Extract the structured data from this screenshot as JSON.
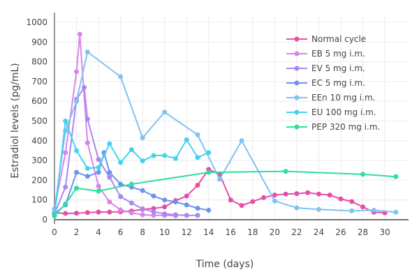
{
  "chart_data": {
    "type": "line",
    "title": "",
    "xlabel": "Time (days)",
    "ylabel": "Estradiol levels (pg/mL)",
    "xlim": [
      0,
      32
    ],
    "ylim": [
      0,
      1000
    ],
    "xticks": [
      0,
      2,
      4,
      6,
      8,
      10,
      12,
      14,
      16,
      18,
      20,
      22,
      24,
      26,
      28,
      30
    ],
    "yticks": [
      0,
      100,
      200,
      300,
      400,
      500,
      600,
      700,
      800,
      900,
      1000
    ],
    "grid": true,
    "legend": "top-right",
    "series": [
      {
        "name": "Normal cycle",
        "color": "#e54ea6",
        "x": [
          0,
          1,
          2,
          3,
          4,
          5,
          6,
          7,
          8,
          9,
          10,
          11,
          12,
          13,
          14,
          15,
          16,
          17,
          18,
          19,
          20,
          21,
          22,
          23,
          24,
          25,
          26,
          27,
          28,
          29,
          30
        ],
        "y": [
          35,
          32,
          33,
          36,
          39,
          39,
          40,
          44,
          52,
          57,
          65,
          97,
          120,
          175,
          255,
          230,
          100,
          72,
          92,
          112,
          125,
          130,
          132,
          137,
          130,
          125,
          105,
          92,
          65,
          38,
          35
        ]
      },
      {
        "name": "EB 5 mg i.m.",
        "color": "#d884ee",
        "x": [
          0,
          1,
          2,
          2.3,
          3,
          4,
          5,
          6,
          7,
          8,
          9,
          10,
          11
        ],
        "y": [
          55,
          340,
          750,
          940,
          390,
          170,
          90,
          50,
          35,
          25,
          22,
          22,
          20
        ]
      },
      {
        "name": "EV 5 mg i.m.",
        "color": "#a888ee",
        "x": [
          0,
          1,
          2,
          2.7,
          3,
          4,
          5,
          6,
          7,
          8,
          9,
          10,
          11,
          12,
          13
        ],
        "y": [
          30,
          165,
          610,
          670,
          510,
          305,
          215,
          117,
          85,
          55,
          40,
          30,
          25,
          22,
          22
        ]
      },
      {
        "name": "EC 5 mg i.m.",
        "color": "#6e92ee",
        "x": [
          0,
          1,
          2,
          3,
          4,
          4.5,
          5,
          6,
          7,
          8,
          9,
          10,
          11,
          12,
          13,
          14
        ],
        "y": [
          30,
          75,
          240,
          220,
          240,
          340,
          240,
          180,
          165,
          148,
          120,
          100,
          90,
          75,
          58,
          48
        ]
      },
      {
        "name": "EEn 10 mg i.m.",
        "color": "#80c2f0",
        "x": [
          0,
          1,
          2,
          3,
          6,
          8,
          10,
          13,
          15,
          17,
          20,
          22,
          24,
          27,
          29,
          31
        ],
        "y": [
          50,
          450,
          600,
          850,
          725,
          415,
          545,
          430,
          205,
          400,
          95,
          60,
          52,
          45,
          48,
          38
        ]
      },
      {
        "name": "EU 100 mg i.m.",
        "color": "#44d2ee",
        "x": [
          0,
          1,
          2,
          3,
          4,
          5,
          6,
          7,
          8,
          9,
          10,
          11,
          12,
          13,
          14
        ],
        "y": [
          20,
          500,
          350,
          260,
          265,
          385,
          290,
          355,
          298,
          325,
          325,
          310,
          405,
          315,
          340
        ]
      },
      {
        "name": "PEP 320 mg i.m.",
        "color": "#2ede9c",
        "x": [
          0,
          1,
          2,
          4,
          7,
          14,
          21,
          28,
          31
        ],
        "y": [
          20,
          80,
          160,
          145,
          180,
          240,
          245,
          230,
          218
        ]
      }
    ]
  }
}
